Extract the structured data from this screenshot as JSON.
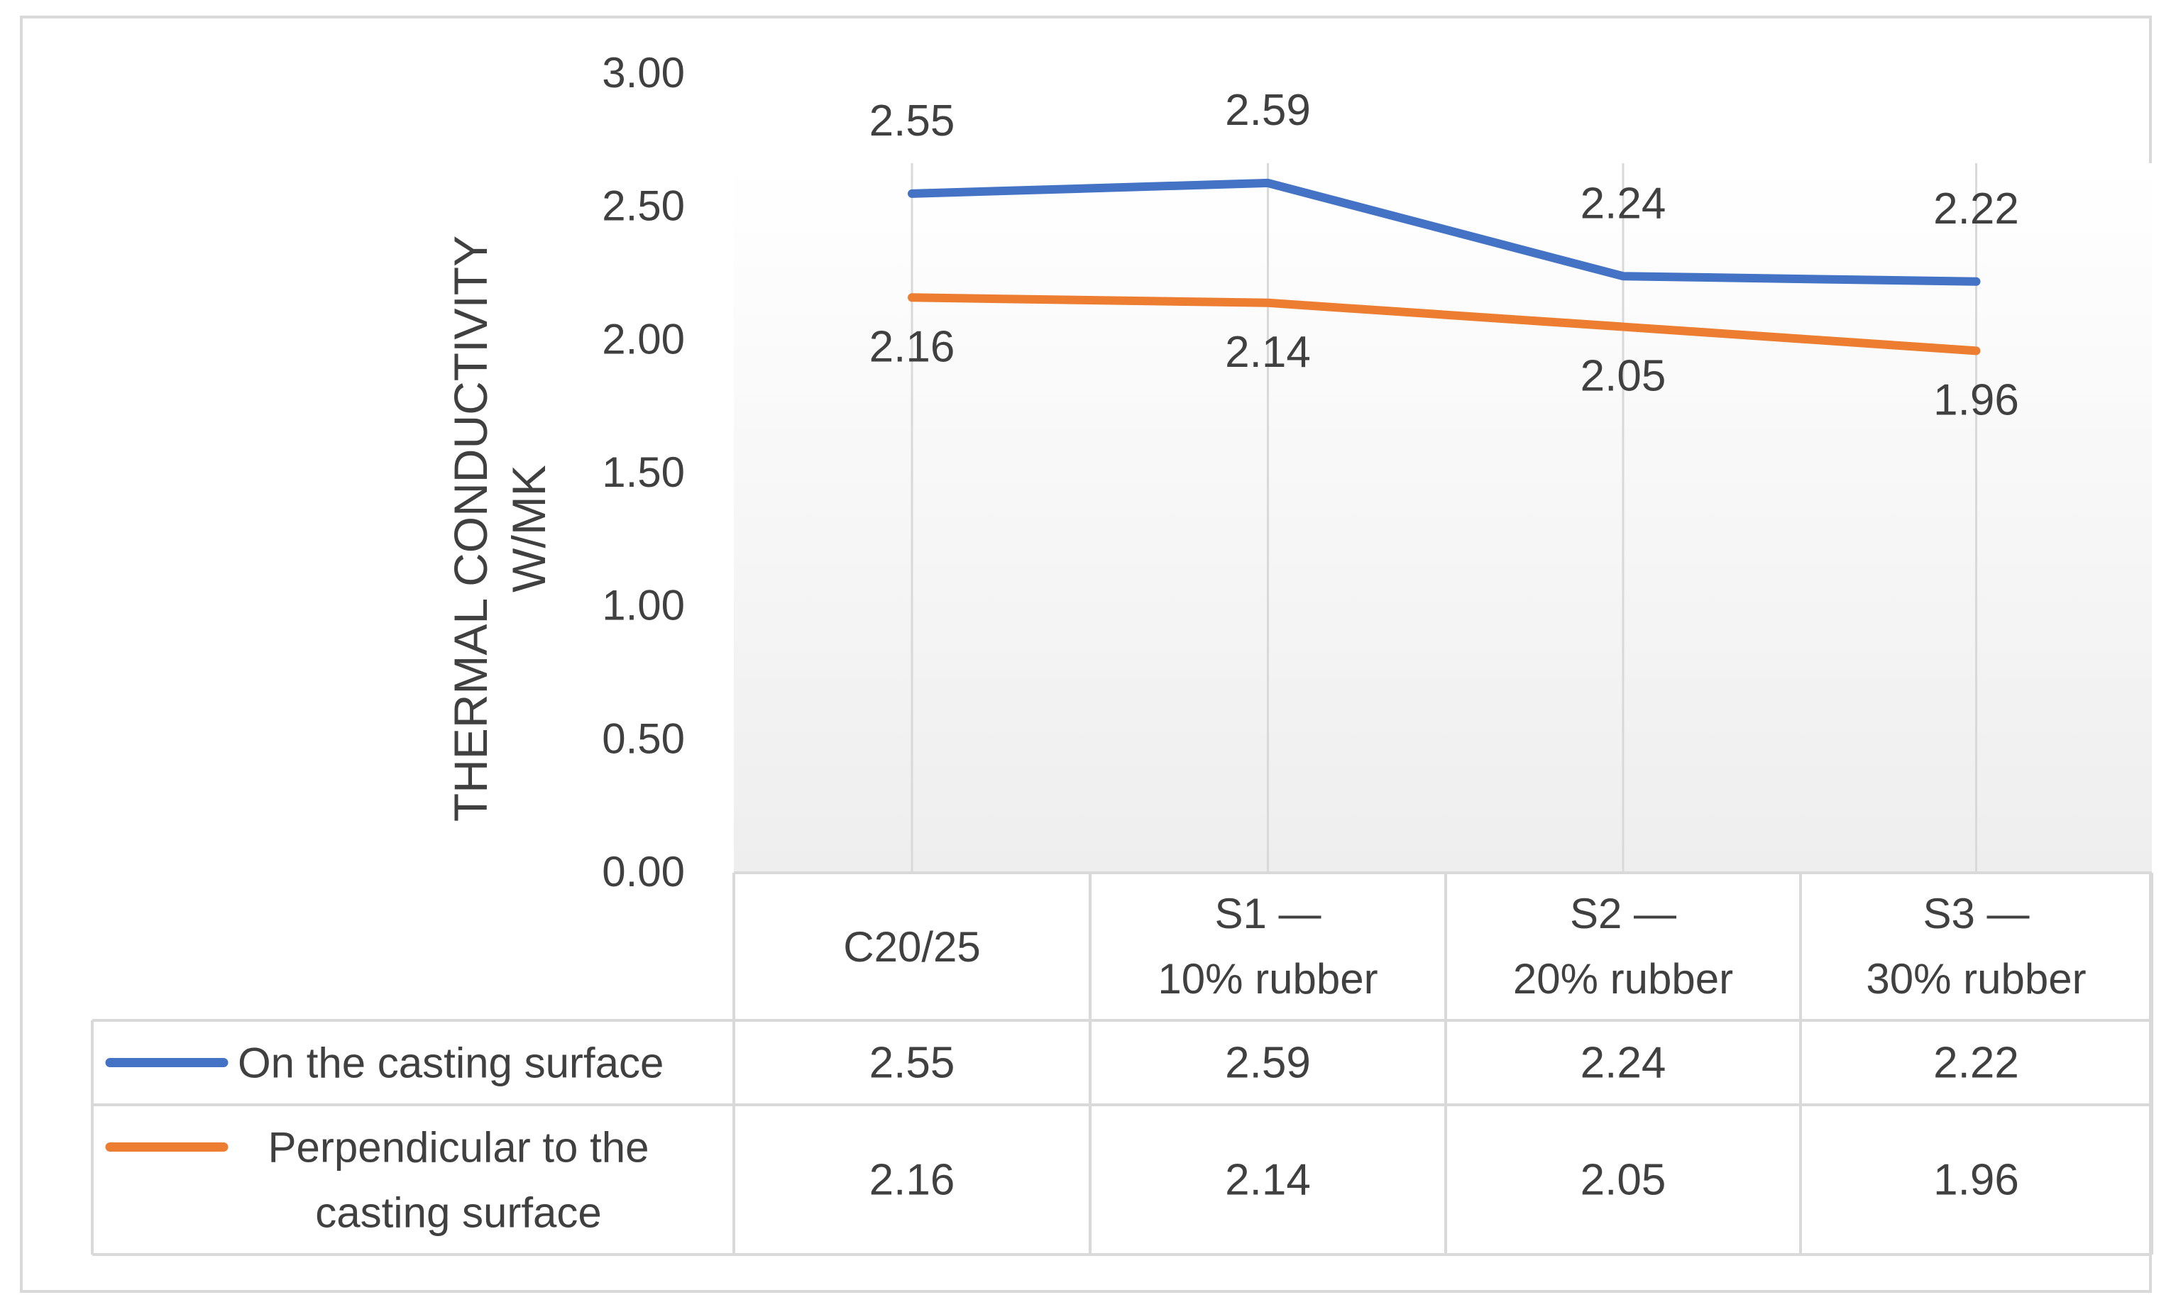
{
  "chart_data": {
    "type": "line",
    "title": "",
    "xlabel": "",
    "ylabel": "THERMAL CONDUCTIVITY W/MK",
    "ylabel_lines": [
      "THERMAL CONDUCTIVITY",
      "W/MK"
    ],
    "ylim": [
      0,
      3
    ],
    "ytick_step": 0.5,
    "yticks": [
      "0.00",
      "0.50",
      "1.00",
      "1.50",
      "2.00",
      "2.50",
      "3.00"
    ],
    "grid": "vertical",
    "legend": "data-table",
    "categories": [
      "C20/25",
      "S1 — 10% rubber",
      "S2 — 20% rubber",
      "S3 — 30% rubber"
    ],
    "category_lines": [
      [
        "C20/25"
      ],
      [
        "S1 —",
        "10% rubber"
      ],
      [
        "S2 —",
        "20% rubber"
      ],
      [
        "S3 —",
        "30% rubber"
      ]
    ],
    "series": [
      {
        "name": "On the casting surface",
        "name_lines": [
          "On the casting surface"
        ],
        "color": "#4472C4",
        "values": [
          2.55,
          2.59,
          2.24,
          2.22
        ],
        "labels": [
          "2.55",
          "2.59",
          "2.24",
          "2.22"
        ],
        "label_position": "above"
      },
      {
        "name": "Perpendicular to the casting surface",
        "name_lines": [
          "Perpendicular to the",
          "casting surface"
        ],
        "color": "#ED7D31",
        "values": [
          2.16,
          2.14,
          2.05,
          1.96
        ],
        "labels": [
          "2.16",
          "2.14",
          "2.05",
          "1.96"
        ],
        "label_position": "below"
      }
    ]
  }
}
